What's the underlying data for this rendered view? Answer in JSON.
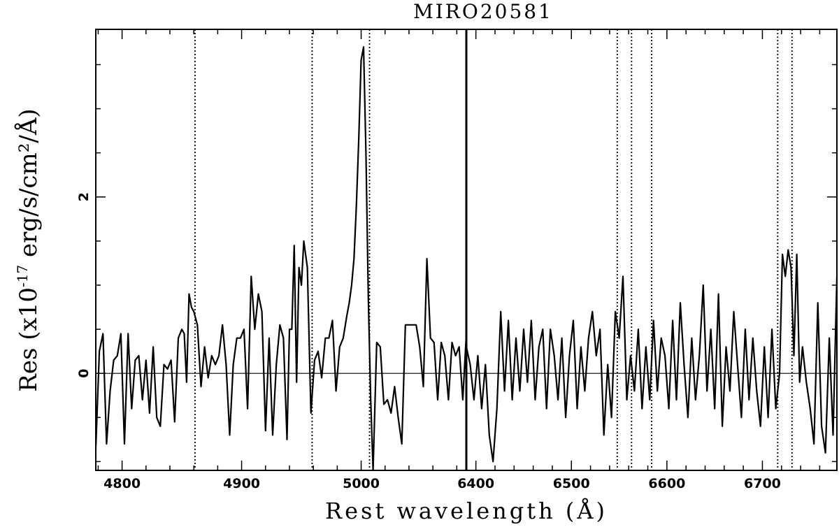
{
  "chart_data": {
    "type": "line",
    "title": "MIRO20581",
    "xlabel": "Rest wavelength (Å)",
    "ylabel_prefix": "Res (x10",
    "ylabel_exp": "-17",
    "ylabel_suffix": " erg/s/cm²/Å)",
    "ylim": [
      -1.1,
      3.9
    ],
    "y_major_ticks": [
      0,
      2
    ],
    "y_tick_labels": [
      "0",
      "2"
    ],
    "y_minor_step": 0.5,
    "panels": [
      {
        "name": "left",
        "xlim": [
          4778,
          5088
        ],
        "x_major_ticks": [
          4800,
          4900,
          5000
        ],
        "x_tick_labels": [
          "4800",
          "4900",
          "5000"
        ],
        "vlines": [
          4861,
          4959,
          5007
        ],
        "series": {
          "name": "residual",
          "x": [
            4778,
            4781,
            4784,
            4787,
            4790,
            4793,
            4796,
            4799,
            4802,
            4805,
            4808,
            4811,
            4814,
            4817,
            4820,
            4823,
            4826,
            4829,
            4832,
            4835,
            4838,
            4841,
            4844,
            4847,
            4850,
            4852,
            4854,
            4856,
            4858,
            4860,
            4863,
            4866,
            4869,
            4872,
            4875,
            4878,
            4881,
            4884,
            4887,
            4890,
            4893,
            4896,
            4899,
            4902,
            4905,
            4908,
            4911,
            4914,
            4917,
            4920,
            4923,
            4926,
            4929,
            4932,
            4935,
            4938,
            4940,
            4942,
            4944,
            4946,
            4948,
            4950,
            4952,
            4955,
            4958,
            4961,
            4964,
            4967,
            4970,
            4973,
            4976,
            4979,
            4982,
            4985,
            4988,
            4990,
            4992,
            4994,
            4996,
            4998,
            5000,
            5002,
            5004,
            5006,
            5008,
            5010,
            5013,
            5016,
            5019,
            5022,
            5025,
            5028,
            5031,
            5034,
            5037,
            5040,
            5043,
            5046,
            5049,
            5052,
            5055,
            5058,
            5061,
            5064,
            5067,
            5070,
            5073,
            5076,
            5079,
            5082,
            5085,
            5088
          ],
          "y": [
            -0.85,
            0.25,
            0.45,
            -0.8,
            -0.2,
            0.15,
            0.2,
            0.45,
            -0.8,
            0.45,
            -0.4,
            0.15,
            0.2,
            -0.3,
            0.15,
            -0.45,
            0.3,
            -0.5,
            -0.6,
            0.1,
            0.05,
            0.15,
            -0.55,
            0.4,
            0.5,
            0.45,
            -0.1,
            0.9,
            0.75,
            0.7,
            0.55,
            -0.15,
            0.3,
            -0.05,
            0.2,
            0.1,
            0.2,
            0.55,
            0.1,
            -0.7,
            0.1,
            0.4,
            0.4,
            0.5,
            -0.4,
            1.1,
            0.5,
            0.9,
            0.7,
            -0.65,
            0.4,
            -0.7,
            0.1,
            0.55,
            0.4,
            -0.75,
            0.5,
            0.5,
            1.45,
            -0.1,
            1.2,
            1.0,
            1.5,
            1.2,
            -0.45,
            0.15,
            0.25,
            -0.05,
            0.4,
            0.4,
            0.6,
            -0.2,
            0.3,
            0.4,
            0.65,
            0.8,
            1.0,
            1.3,
            1.9,
            2.65,
            3.55,
            3.7,
            2.5,
            0.85,
            -0.3,
            -1.1,
            0.35,
            0.3,
            -0.35,
            -0.3,
            -0.45,
            -0.15,
            -0.5,
            -0.8,
            0.55,
            0.55,
            0.55,
            0.55,
            0.3,
            -0.15,
            1.3,
            0.4,
            0.35,
            -0.3,
            0.35,
            0.2,
            -0.3,
            0.35,
            0.2,
            0.3,
            -0.3,
            0.45
          ]
        }
      },
      {
        "name": "right",
        "xlim": [
          6390,
          6778
        ],
        "x_major_ticks": [
          6400,
          6500,
          6600,
          6700
        ],
        "x_tick_labels": [
          "6400",
          "6500",
          "6600",
          "6700"
        ],
        "vlines": [
          6548,
          6563,
          6584,
          6716,
          6731
        ],
        "series": {
          "name": "residual",
          "x": [
            6390,
            6394,
            6398,
            6402,
            6406,
            6410,
            6414,
            6418,
            6422,
            6426,
            6430,
            6434,
            6438,
            6442,
            6446,
            6450,
            6454,
            6458,
            6462,
            6466,
            6470,
            6474,
            6478,
            6482,
            6486,
            6490,
            6494,
            6498,
            6502,
            6506,
            6510,
            6514,
            6518,
            6522,
            6526,
            6530,
            6534,
            6538,
            6542,
            6546,
            6550,
            6554,
            6558,
            6562,
            6566,
            6570,
            6574,
            6578,
            6582,
            6586,
            6590,
            6594,
            6598,
            6602,
            6606,
            6610,
            6614,
            6618,
            6622,
            6626,
            6630,
            6634,
            6638,
            6642,
            6646,
            6650,
            6654,
            6658,
            6662,
            6666,
            6670,
            6674,
            6678,
            6682,
            6686,
            6690,
            6694,
            6698,
            6702,
            6706,
            6710,
            6714,
            6718,
            6721,
            6724,
            6727,
            6730,
            6733,
            6736,
            6739,
            6742,
            6746,
            6750,
            6754,
            6758,
            6762,
            6766,
            6770,
            6774,
            6778
          ],
          "y": [
            0.3,
            0.1,
            -0.3,
            0.2,
            -0.4,
            0.1,
            -0.7,
            -1.0,
            -0.4,
            0.7,
            -0.2,
            0.6,
            -0.3,
            0.4,
            -0.2,
            0.5,
            -0.1,
            0.6,
            -0.3,
            0.3,
            0.5,
            -0.4,
            0.5,
            0.2,
            -0.3,
            0.4,
            -0.5,
            0.2,
            0.6,
            -0.4,
            0.3,
            -0.2,
            0.4,
            0.7,
            0.2,
            0.5,
            -0.7,
            0.1,
            -0.5,
            0.7,
            0.4,
            1.1,
            -0.3,
            0.2,
            -0.2,
            0.5,
            -0.4,
            0.3,
            -0.3,
            0.6,
            -0.2,
            0.4,
            0.2,
            -0.4,
            0.6,
            -0.3,
            0.8,
            0.1,
            -0.5,
            0.4,
            -0.3,
            0.2,
            1.0,
            -0.2,
            0.5,
            -0.4,
            0.9,
            -0.6,
            0.3,
            -0.2,
            0.7,
            0.1,
            -0.5,
            0.5,
            -0.3,
            0.4,
            -0.2,
            -0.6,
            0.3,
            -0.5,
            0.5,
            -0.4,
            0.0,
            1.35,
            1.1,
            1.4,
            1.2,
            0.2,
            1.35,
            -0.1,
            0.3,
            -0.1,
            -0.4,
            -0.8,
            0.8,
            -0.6,
            -0.9,
            0.4,
            -0.7,
            1.1
          ]
        }
      }
    ]
  }
}
